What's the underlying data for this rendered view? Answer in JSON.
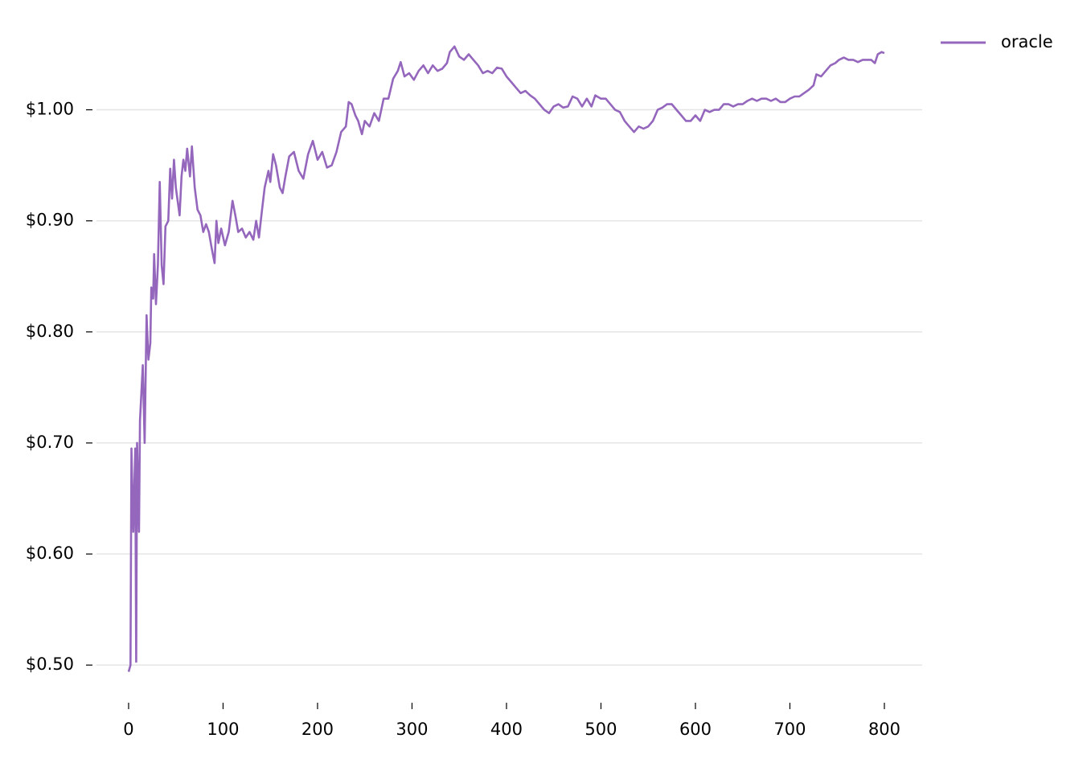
{
  "chart_data": {
    "type": "line",
    "xlim": [
      -34,
      840
    ],
    "ylim": [
      0.469,
      1.088
    ],
    "xticks": [
      0,
      100,
      200,
      300,
      400,
      500,
      600,
      700,
      800
    ],
    "yticks": [
      {
        "value": 0.5,
        "label": "$0.50"
      },
      {
        "value": 0.6,
        "label": "$0.60"
      },
      {
        "value": 0.7,
        "label": "$0.70"
      },
      {
        "value": 0.8,
        "label": "$0.80"
      },
      {
        "value": 0.9,
        "label": "$0.90"
      },
      {
        "value": 1.0,
        "label": "$1.00"
      }
    ],
    "grid": true,
    "legend": "upper right",
    "x": [
      0,
      2,
      3,
      5,
      7,
      8,
      9,
      11,
      12,
      15,
      17,
      19,
      21,
      23,
      24,
      26,
      27,
      29,
      31,
      33,
      35,
      37,
      39,
      42,
      44,
      46,
      48,
      50,
      54,
      56,
      58,
      60,
      62,
      65,
      67,
      70,
      73,
      76,
      79,
      82,
      85,
      88,
      91,
      93,
      95,
      98,
      102,
      106,
      110,
      113,
      116,
      120,
      124,
      128,
      132,
      135,
      138,
      141,
      144,
      148,
      150,
      153,
      156,
      160,
      163,
      166,
      170,
      175,
      180,
      185,
      190,
      195,
      200,
      205,
      210,
      215,
      220,
      225,
      230,
      233,
      236,
      240,
      243,
      247,
      250,
      255,
      260,
      265,
      270,
      275,
      280,
      285,
      288,
      292,
      297,
      302,
      307,
      312,
      317,
      322,
      327,
      332,
      337,
      340,
      345,
      350,
      355,
      360,
      365,
      370,
      375,
      380,
      385,
      390,
      395,
      400,
      405,
      410,
      415,
      420,
      425,
      430,
      435,
      440,
      445,
      450,
      455,
      460,
      465,
      470,
      475,
      480,
      485,
      490,
      494,
      500,
      505,
      510,
      515,
      520,
      525,
      530,
      535,
      540,
      545,
      550,
      555,
      560,
      565,
      570,
      575,
      580,
      585,
      590,
      595,
      600,
      605,
      610,
      615,
      620,
      625,
      630,
      635,
      640,
      645,
      650,
      655,
      660,
      665,
      670,
      675,
      680,
      685,
      690,
      695,
      700,
      705,
      710,
      715,
      720,
      725,
      728,
      733,
      738,
      743,
      748,
      752,
      757,
      762,
      767,
      772,
      777,
      782,
      786,
      790,
      793,
      797,
      800
    ],
    "series": [
      {
        "name": "oracle",
        "color": "#9467bd",
        "values": [
          0.494,
          0.5,
          0.695,
          0.62,
          0.695,
          0.503,
          0.7,
          0.62,
          0.72,
          0.77,
          0.7,
          0.815,
          0.775,
          0.79,
          0.84,
          0.83,
          0.87,
          0.825,
          0.86,
          0.935,
          0.86,
          0.843,
          0.895,
          0.9,
          0.947,
          0.92,
          0.955,
          0.93,
          0.905,
          0.94,
          0.955,
          0.945,
          0.965,
          0.94,
          0.967,
          0.93,
          0.91,
          0.905,
          0.89,
          0.897,
          0.89,
          0.875,
          0.862,
          0.9,
          0.88,
          0.893,
          0.878,
          0.89,
          0.918,
          0.905,
          0.89,
          0.893,
          0.885,
          0.89,
          0.883,
          0.9,
          0.885,
          0.908,
          0.93,
          0.945,
          0.935,
          0.96,
          0.95,
          0.93,
          0.925,
          0.94,
          0.958,
          0.962,
          0.945,
          0.938,
          0.96,
          0.972,
          0.955,
          0.962,
          0.948,
          0.95,
          0.962,
          0.98,
          0.985,
          1.007,
          1.005,
          0.995,
          0.99,
          0.978,
          0.99,
          0.985,
          0.997,
          0.99,
          1.01,
          1.01,
          1.028,
          1.035,
          1.043,
          1.03,
          1.033,
          1.027,
          1.035,
          1.04,
          1.033,
          1.04,
          1.035,
          1.037,
          1.042,
          1.052,
          1.057,
          1.048,
          1.045,
          1.05,
          1.045,
          1.04,
          1.033,
          1.035,
          1.033,
          1.038,
          1.037,
          1.03,
          1.025,
          1.02,
          1.015,
          1.017,
          1.013,
          1.01,
          1.005,
          1.0,
          0.997,
          1.003,
          1.005,
          1.002,
          1.003,
          1.012,
          1.01,
          1.003,
          1.01,
          1.003,
          1.013,
          1.01,
          1.01,
          1.005,
          1.0,
          0.998,
          0.99,
          0.985,
          0.98,
          0.985,
          0.983,
          0.985,
          0.99,
          1.0,
          1.002,
          1.005,
          1.005,
          1.0,
          0.995,
          0.99,
          0.99,
          0.995,
          0.99,
          1.0,
          0.998,
          1.0,
          1.0,
          1.005,
          1.005,
          1.003,
          1.005,
          1.005,
          1.008,
          1.01,
          1.008,
          1.01,
          1.01,
          1.008,
          1.01,
          1.007,
          1.007,
          1.01,
          1.012,
          1.012,
          1.015,
          1.018,
          1.022,
          1.032,
          1.03,
          1.035,
          1.04,
          1.042,
          1.045,
          1.047,
          1.045,
          1.045,
          1.043,
          1.045,
          1.045,
          1.045,
          1.042,
          1.05,
          1.052,
          1.051
        ]
      }
    ]
  }
}
